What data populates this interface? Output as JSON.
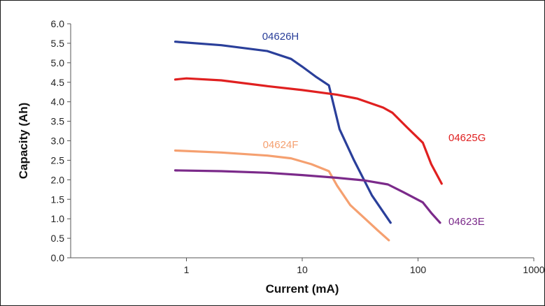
{
  "chart_data": {
    "type": "line",
    "title": "",
    "xlabel": "Current (mA)",
    "ylabel": "Capacity (Ah)",
    "x_scale": "log",
    "xlim": [
      0.1,
      1000
    ],
    "ylim": [
      0,
      6
    ],
    "x_ticks": [
      1,
      10,
      100,
      1000
    ],
    "x_tick_labels": [
      "1",
      "10",
      "100",
      "1000"
    ],
    "y_ticks": [
      0,
      0.5,
      1,
      1.5,
      2,
      2.5,
      3,
      3.5,
      4,
      4.5,
      5,
      5.5,
      6
    ],
    "y_tick_labels": [
      "0.0",
      "0.5",
      "1.0",
      "1.5",
      "2.0",
      "2.5",
      "3.0",
      "3.5",
      "4.0",
      "4.5",
      "5.0",
      "5.5",
      "6.0"
    ],
    "grid": false,
    "legend": "none",
    "series": [
      {
        "name": "04626H",
        "color": "#2a3f9a",
        "points": [
          [
            0.8,
            5.54
          ],
          [
            2,
            5.45
          ],
          [
            5,
            5.3
          ],
          [
            8,
            5.1
          ],
          [
            10,
            4.9
          ],
          [
            13,
            4.65
          ],
          [
            17,
            4.42
          ],
          [
            21,
            3.3
          ],
          [
            28,
            2.5
          ],
          [
            40,
            1.6
          ],
          [
            58,
            0.9
          ]
        ]
      },
      {
        "name": "04625G",
        "color": "#e02020",
        "points": [
          [
            0.8,
            4.57
          ],
          [
            1,
            4.6
          ],
          [
            2,
            4.55
          ],
          [
            5,
            4.4
          ],
          [
            10,
            4.3
          ],
          [
            20,
            4.18
          ],
          [
            30,
            4.08
          ],
          [
            50,
            3.85
          ],
          [
            60,
            3.72
          ],
          [
            80,
            3.35
          ],
          [
            110,
            2.95
          ],
          [
            130,
            2.4
          ],
          [
            160,
            1.9
          ]
        ]
      },
      {
        "name": "04624F",
        "color": "#f5a070",
        "points": [
          [
            0.8,
            2.75
          ],
          [
            2,
            2.7
          ],
          [
            5,
            2.62
          ],
          [
            8,
            2.55
          ],
          [
            12,
            2.4
          ],
          [
            17,
            2.22
          ],
          [
            20,
            1.85
          ],
          [
            26,
            1.35
          ],
          [
            35,
            1.0
          ],
          [
            45,
            0.7
          ],
          [
            56,
            0.45
          ]
        ]
      },
      {
        "name": "04623E",
        "color": "#7b2a8a",
        "points": [
          [
            0.8,
            2.24
          ],
          [
            2,
            2.22
          ],
          [
            5,
            2.18
          ],
          [
            10,
            2.12
          ],
          [
            20,
            2.05
          ],
          [
            35,
            1.98
          ],
          [
            55,
            1.88
          ],
          [
            75,
            1.68
          ],
          [
            110,
            1.42
          ],
          [
            130,
            1.15
          ],
          [
            155,
            0.9
          ]
        ]
      }
    ]
  }
}
